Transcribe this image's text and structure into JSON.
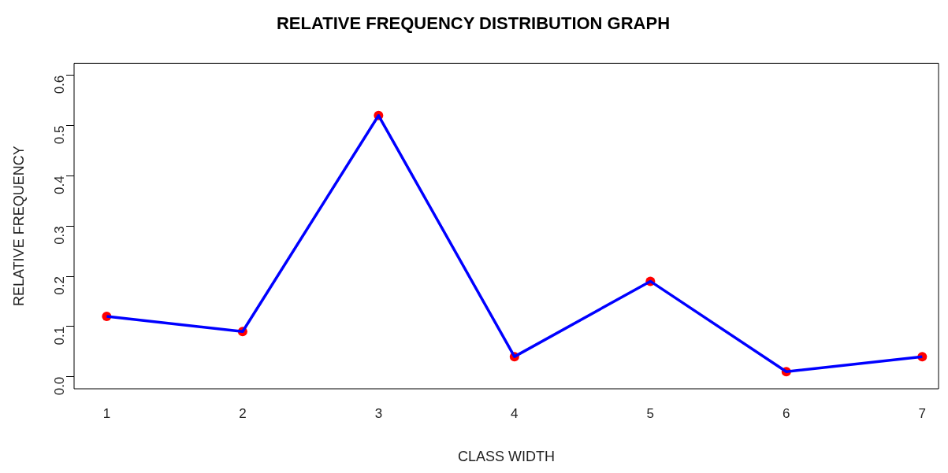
{
  "chart_data": {
    "type": "line",
    "title": "RELATIVE FREQUENCY DISTRIBUTION GRAPH",
    "xlabel": "CLASS WIDTH",
    "ylabel": "RELATIVE FREQUENCY",
    "x": [
      1,
      2,
      3,
      4,
      5,
      6,
      7
    ],
    "series": [
      {
        "color": "#0000ff",
        "marker": "none",
        "values": [
          0.12,
          0.09,
          0.52,
          0.04,
          0.19,
          0.01,
          0.04
        ]
      },
      {
        "type": "scatter",
        "color": "#ff0000",
        "marker": "circle",
        "values": [
          0.12,
          0.09,
          0.52,
          0.04,
          0.19,
          0.01,
          0.04
        ]
      }
    ],
    "xlim": [
      0.76,
      7.12
    ],
    "xticks": [
      1,
      2,
      3,
      4,
      5,
      6,
      7
    ],
    "ylim": [
      -0.024,
      0.624
    ],
    "yticks": [
      {
        "value": 0,
        "label": "0.0"
      },
      {
        "value": 0.1,
        "label": "0.1"
      },
      {
        "value": 0.2,
        "label": "0.2"
      },
      {
        "value": 0.3,
        "label": "0.3"
      },
      {
        "value": 0.4,
        "label": "0.4"
      },
      {
        "value": 0.5,
        "label": "0.5"
      },
      {
        "value": 0.6,
        "label": "0.6"
      }
    ],
    "grid": false,
    "legend": false
  }
}
